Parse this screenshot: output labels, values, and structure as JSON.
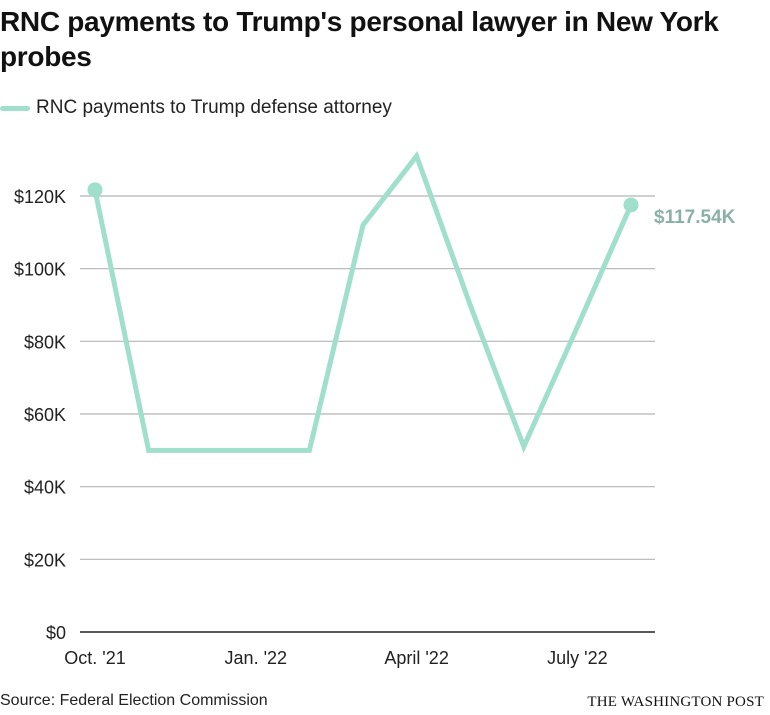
{
  "header": {
    "title": "RNC payments to Trump's personal lawyer in New York probes"
  },
  "legend": {
    "label": "RNC payments to Trump defense attorney",
    "color": "#9fdfcc"
  },
  "footer": {
    "source": "Source: Federal Election Commission",
    "brand": "THE WASHINGTON POST"
  },
  "colors": {
    "line": "#9fdfcc",
    "end_label": "#8ab0a8",
    "grid": "#b5b5b5",
    "axis": "#222222"
  },
  "chart_data": {
    "type": "line",
    "title": "RNC payments to Trump's personal lawyer in New York probes",
    "xlabel": "",
    "ylabel": "",
    "x_ticks": [
      "Oct. '21",
      "Jan. '22",
      "April '22",
      "July '22"
    ],
    "y_ticks": [
      "$0",
      "$20K",
      "$40K",
      "$60K",
      "$80K",
      "$100K",
      "$120K"
    ],
    "ylim": [
      0,
      130000
    ],
    "grid": true,
    "legend_position": "top-left",
    "end_label": "$117.54K",
    "series": [
      {
        "name": "RNC payments to Trump defense attorney",
        "x": [
          "2021-10",
          "2021-11",
          "2021-12",
          "2022-01",
          "2022-02",
          "2022-03",
          "2022-04",
          "2022-05",
          "2022-06",
          "2022-07",
          "2022-08"
        ],
        "values": [
          121700,
          50000,
          50000,
          50000,
          50000,
          112000,
          131000,
          90000,
          51000,
          84000,
          117540
        ]
      }
    ]
  }
}
